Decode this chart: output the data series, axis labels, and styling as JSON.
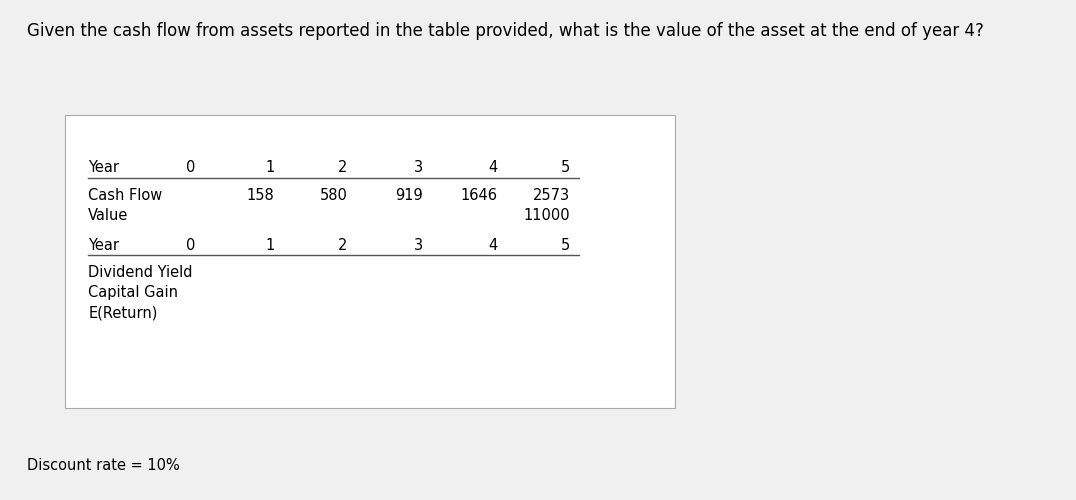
{
  "title": "Given the cash flow from assets reported in the table provided, what is the value of the asset at the end of year 4?",
  "title_fontsize": 12,
  "discount_rate_text": "Discount rate = 10%",
  "table1_header_row": [
    "Year",
    "0",
    "1",
    "2",
    "3",
    "4",
    "5"
  ],
  "table1_row1_label": "Cash Flow",
  "table1_row1_values": [
    "",
    "158",
    "580",
    "919",
    "1646",
    "2573"
  ],
  "table1_row2_label": "Value",
  "table1_row2_values": [
    "",
    "",
    "",
    "",
    "",
    "11000"
  ],
  "table2_header_row": [
    "Year",
    "0",
    "1",
    "2",
    "3",
    "4",
    "5"
  ],
  "table2_row1_label": "Dividend Yield",
  "table2_row2_label": "Capital Gain",
  "table2_row3_label": "E(Return)",
  "bg_color": "#f0f0f0",
  "box_bg_color": "#ffffff",
  "text_color": "#000000",
  "line_color": "#555555",
  "font_size": 10.5
}
